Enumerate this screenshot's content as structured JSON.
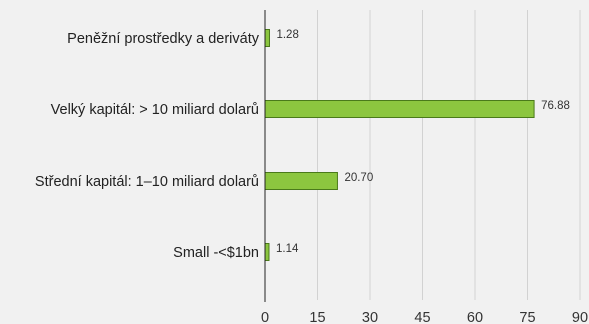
{
  "chart_data": {
    "type": "bar",
    "orientation": "horizontal",
    "categories": [
      "Peněžní prostředky a deriváty",
      "Velký kapitál: > 10 miliard dolarů",
      "Střední kapitál: 1–10 miliard dolarů",
      "Small -<$1bn"
    ],
    "values": [
      1.28,
      76.88,
      20.7,
      1.14
    ],
    "value_labels": [
      "1.28",
      "76.88",
      "20.70",
      "1.14"
    ],
    "x_ticks": [
      "0",
      "15",
      "30",
      "45",
      "60",
      "75",
      "90"
    ],
    "xlim": [
      0,
      90
    ],
    "grid": true,
    "legend": "none",
    "colors": {
      "bar_fill": "#8cc63f",
      "bar_stroke": "#4a7a1a",
      "background": "#f1f1f1",
      "grid": "#d2d2d2",
      "axis": "#222222"
    }
  }
}
